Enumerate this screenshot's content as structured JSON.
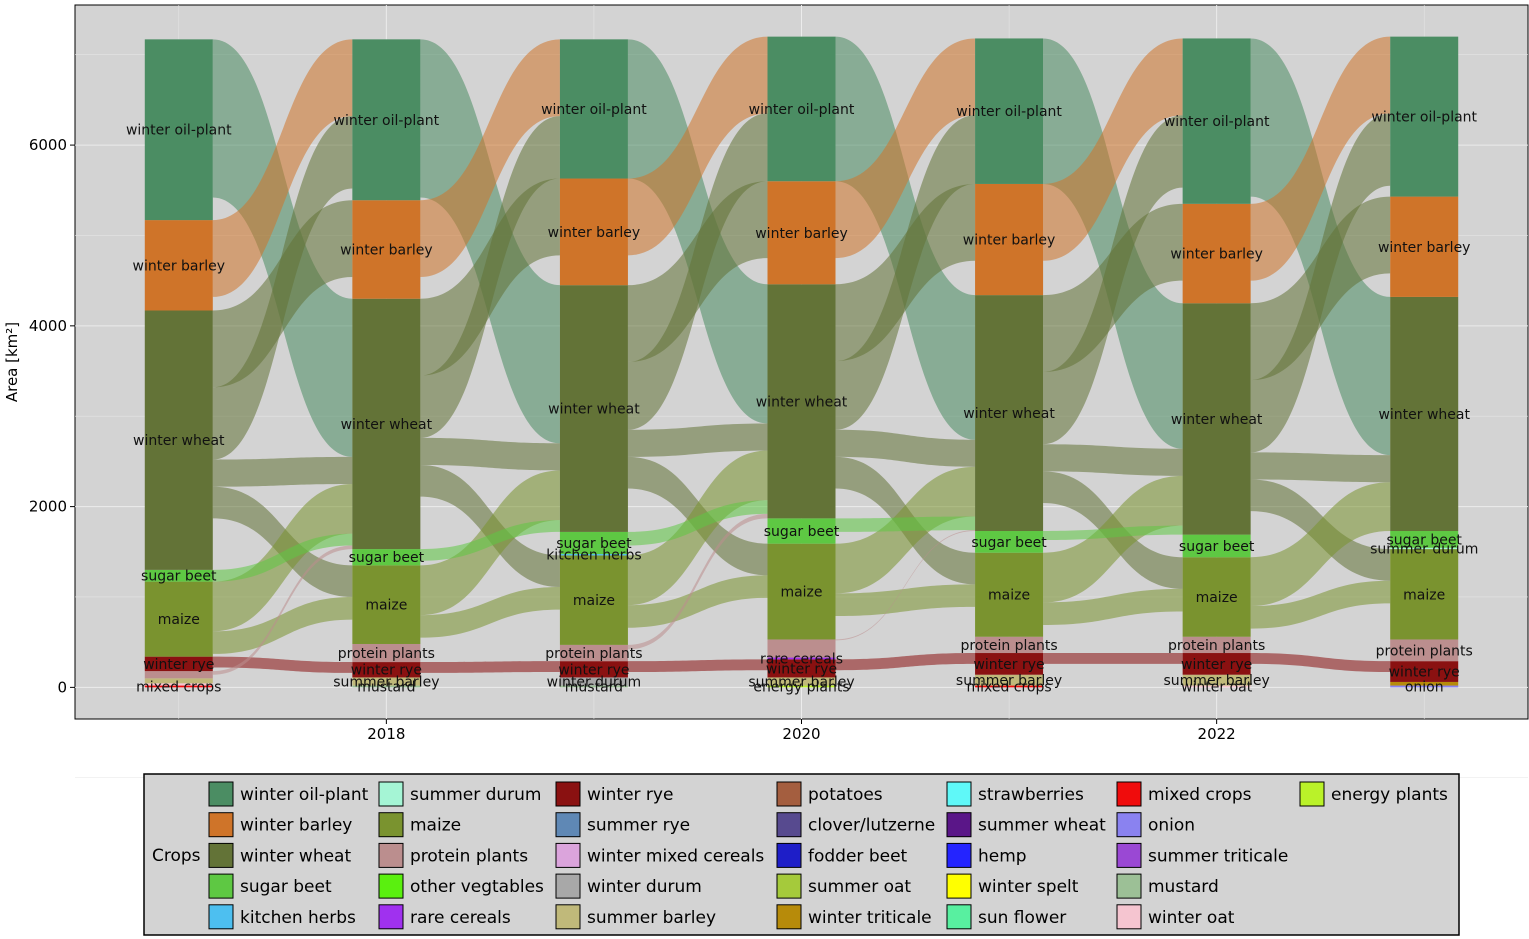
{
  "chart_data": {
    "type": "sankey",
    "ylabel": "Area [km²]",
    "xlabel": "",
    "y_ticks": [
      0,
      2000,
      4000,
      6000
    ],
    "x_ticks": [
      2018,
      2020,
      2022
    ],
    "xlim": [
      2016.5,
      2023.5
    ],
    "ylim": [
      -350,
      7550
    ],
    "years": [
      2017,
      2018,
      2019,
      2020,
      2021,
      2022,
      2023
    ],
    "grid": true,
    "legend_position": "bottom",
    "legend_title": "Crops",
    "legend": [
      {
        "name": "winter oil-plant",
        "color": "#4b8d63"
      },
      {
        "name": "winter barley",
        "color": "#cf7429"
      },
      {
        "name": "winter wheat",
        "color": "#637337"
      },
      {
        "name": "sugar beet",
        "color": "#5ec843"
      },
      {
        "name": "kitchen herbs",
        "color": "#4dbff0"
      },
      {
        "name": "summer durum",
        "color": "#a5f5d5"
      },
      {
        "name": "maize",
        "color": "#7a932f"
      },
      {
        "name": "protein plants",
        "color": "#bb8e8e"
      },
      {
        "name": "other vegtables",
        "color": "#5af00f"
      },
      {
        "name": "rare cereals",
        "color": "#a031ef"
      },
      {
        "name": "winter rye",
        "color": "#8a1111"
      },
      {
        "name": "summer rye",
        "color": "#5f88b5"
      },
      {
        "name": "winter mixed cereals",
        "color": "#dba4dc"
      },
      {
        "name": "winter durum",
        "color": "#a8a8a8"
      },
      {
        "name": "summer barley",
        "color": "#c0b97a"
      },
      {
        "name": "potatoes",
        "color": "#a45e3f"
      },
      {
        "name": "clover/lutzerne",
        "color": "#574a8f"
      },
      {
        "name": "fodder beet",
        "color": "#1e1ec8"
      },
      {
        "name": "summer oat",
        "color": "#a5ca3b"
      },
      {
        "name": "winter triticale",
        "color": "#b78b0a"
      },
      {
        "name": "strawberries",
        "color": "#5ff8f8"
      },
      {
        "name": "summer wheat",
        "color": "#5a1688"
      },
      {
        "name": "hemp",
        "color": "#2424ff"
      },
      {
        "name": "winter spelt",
        "color": "#ffff00"
      },
      {
        "name": "sun flower",
        "color": "#58f0a0"
      },
      {
        "name": "mixed crops",
        "color": "#f00c0c"
      },
      {
        "name": "onion",
        "color": "#8a82f0"
      },
      {
        "name": "summer triticale",
        "color": "#9a48d4"
      },
      {
        "name": "mustard",
        "color": "#9cc096"
      },
      {
        "name": "winter oat",
        "color": "#f5c5d0"
      },
      {
        "name": "energy plants",
        "color": "#baf229"
      }
    ],
    "stacks": [
      {
        "year": 2017,
        "nodes": [
          {
            "crop": "mixed crops",
            "value": 20,
            "label": "mixed crops"
          },
          {
            "crop": "winter oat",
            "value": 25,
            "label": ""
          },
          {
            "crop": "summer barley",
            "value": 55,
            "label": ""
          },
          {
            "crop": "protein plants",
            "value": 80,
            "label": ""
          },
          {
            "crop": "winter rye",
            "value": 160,
            "label": "winter rye"
          },
          {
            "crop": "maize",
            "value": 830,
            "label": "maize"
          },
          {
            "crop": "sugar beet",
            "value": 130,
            "label": "sugar beet"
          },
          {
            "crop": "winter wheat",
            "value": 2870,
            "label": "winter wheat"
          },
          {
            "crop": "winter barley",
            "value": 1000,
            "label": "winter barley"
          },
          {
            "crop": "winter oil-plant",
            "value": 2000,
            "label": "winter oil-plant"
          }
        ]
      },
      {
        "year": 2018,
        "nodes": [
          {
            "crop": "mustard",
            "value": 20,
            "label": "mustard"
          },
          {
            "crop": "summer barley",
            "value": 90,
            "label": "summer barley"
          },
          {
            "crop": "winter rye",
            "value": 170,
            "label": "winter rye"
          },
          {
            "crop": "protein plants",
            "value": 200,
            "label": "protein plants"
          },
          {
            "crop": "maize",
            "value": 870,
            "label": "maize"
          },
          {
            "crop": "sugar beet",
            "value": 180,
            "label": "sugar beet"
          },
          {
            "crop": "winter wheat",
            "value": 2770,
            "label": "winter wheat"
          },
          {
            "crop": "winter barley",
            "value": 1090,
            "label": "winter barley"
          },
          {
            "crop": "winter oil-plant",
            "value": 1780,
            "label": "winter oil-plant"
          }
        ]
      },
      {
        "year": 2019,
        "nodes": [
          {
            "crop": "mustard",
            "value": 20,
            "label": "mustard"
          },
          {
            "crop": "winter durum",
            "value": 90,
            "label": "winter durum"
          },
          {
            "crop": "winter rye",
            "value": 180,
            "label": "winter rye"
          },
          {
            "crop": "protein plants",
            "value": 180,
            "label": "protein plants"
          },
          {
            "crop": "maize",
            "value": 990,
            "label": "maize"
          },
          {
            "crop": "kitchen herbs",
            "value": 15,
            "label": "kitchen herbs"
          },
          {
            "crop": "sugar beet",
            "value": 245,
            "label": "sugar beet"
          },
          {
            "crop": "winter wheat",
            "value": 2730,
            "label": "winter wheat"
          },
          {
            "crop": "winter barley",
            "value": 1180,
            "label": "winter barley"
          },
          {
            "crop": "winter oil-plant",
            "value": 1540,
            "label": "winter oil-plant"
          }
        ]
      },
      {
        "year": 2020,
        "nodes": [
          {
            "crop": "energy plants",
            "value": 20,
            "label": "energy plants"
          },
          {
            "crop": "summer barley",
            "value": 90,
            "label": "summer barley"
          },
          {
            "crop": "winter rye",
            "value": 200,
            "label": "winter rye"
          },
          {
            "crop": "rare cereals",
            "value": 20,
            "label": "rare cereals"
          },
          {
            "crop": "protein plants",
            "value": 200,
            "label": ""
          },
          {
            "crop": "maize",
            "value": 1060,
            "label": "maize"
          },
          {
            "crop": "sugar beet",
            "value": 280,
            "label": "sugar beet"
          },
          {
            "crop": "winter wheat",
            "value": 2590,
            "label": "winter wheat"
          },
          {
            "crop": "winter barley",
            "value": 1140,
            "label": "winter barley"
          },
          {
            "crop": "winter oil-plant",
            "value": 1600,
            "label": "winter oil-plant"
          }
        ]
      },
      {
        "year": 2021,
        "nodes": [
          {
            "crop": "mixed crops",
            "value": 20,
            "label": "mixed crops"
          },
          {
            "crop": "summer barley",
            "value": 120,
            "label": "summer barley"
          },
          {
            "crop": "winter rye",
            "value": 240,
            "label": "winter rye"
          },
          {
            "crop": "protein plants",
            "value": 180,
            "label": "protein plants"
          },
          {
            "crop": "maize",
            "value": 930,
            "label": "maize"
          },
          {
            "crop": "sugar beet",
            "value": 240,
            "label": "sugar beet"
          },
          {
            "crop": "winter wheat",
            "value": 2610,
            "label": "winter wheat"
          },
          {
            "crop": "winter barley",
            "value": 1230,
            "label": "winter barley"
          },
          {
            "crop": "winter oil-plant",
            "value": 1610,
            "label": "winter oil-plant"
          }
        ]
      },
      {
        "year": 2022,
        "nodes": [
          {
            "crop": "winter oat",
            "value": 20,
            "label": "winter oat"
          },
          {
            "crop": "summer barley",
            "value": 120,
            "label": "summer barley"
          },
          {
            "crop": "winter rye",
            "value": 240,
            "label": "winter rye"
          },
          {
            "crop": "protein plants",
            "value": 180,
            "label": "protein plants"
          },
          {
            "crop": "maize",
            "value": 880,
            "label": "maize"
          },
          {
            "crop": "sugar beet",
            "value": 250,
            "label": "sugar beet"
          },
          {
            "crop": "winter wheat",
            "value": 2560,
            "label": "winter wheat"
          },
          {
            "crop": "winter barley",
            "value": 1100,
            "label": "winter barley"
          },
          {
            "crop": "winter oil-plant",
            "value": 1830,
            "label": "winter oil-plant"
          }
        ]
      },
      {
        "year": 2023,
        "nodes": [
          {
            "crop": "onion",
            "value": 20,
            "label": "onion"
          },
          {
            "crop": "winter triticale",
            "value": 40,
            "label": ""
          },
          {
            "crop": "winter rye",
            "value": 230,
            "label": "winter rye"
          },
          {
            "crop": "protein plants",
            "value": 240,
            "label": "protein plants"
          },
          {
            "crop": "maize",
            "value": 1000,
            "label": "maize"
          },
          {
            "crop": "summer durum",
            "value": 15,
            "label": "summer durum"
          },
          {
            "crop": "sugar beet",
            "value": 185,
            "label": "sugar beet"
          },
          {
            "crop": "winter wheat",
            "value": 2590,
            "label": "winter wheat"
          },
          {
            "crop": "winter barley",
            "value": 1110,
            "label": "winter barley"
          },
          {
            "crop": "winter oil-plant",
            "value": 1770,
            "label": "winter oil-plant"
          }
        ]
      }
    ],
    "flows": [
      {
        "from": "winter oil-plant",
        "to": "winter wheat",
        "value": 1750
      },
      {
        "from": "winter barley",
        "to": "winter oil-plant",
        "value": 850
      },
      {
        "from": "winter wheat",
        "to": "winter barley",
        "value": 850
      },
      {
        "from": "winter wheat",
        "to": "winter oil-plant",
        "value": 800
      },
      {
        "from": "winter wheat",
        "to": "winter wheat",
        "value": 300
      },
      {
        "from": "winter wheat",
        "to": "maize",
        "value": 350
      },
      {
        "from": "maize",
        "to": "winter wheat",
        "value": 550
      },
      {
        "from": "maize",
        "to": "maize",
        "value": 250
      },
      {
        "from": "sugar beet",
        "to": "winter wheat",
        "value": 150
      },
      {
        "from": "winter rye",
        "to": "winter rye",
        "value": 120
      },
      {
        "from": "protein plants",
        "to": "winter wheat",
        "value": 120
      }
    ]
  }
}
